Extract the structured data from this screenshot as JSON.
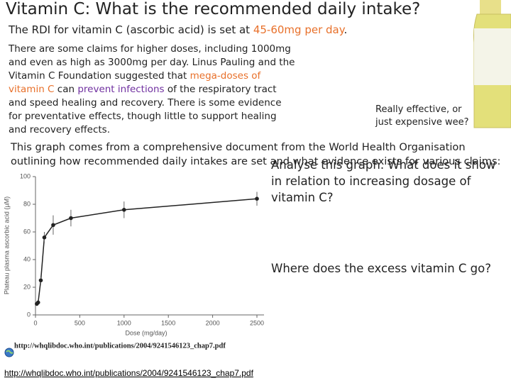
{
  "header": {
    "title": "Vitamin C: What is the recommended daily intake?"
  },
  "intro": [
    "The RDI for vitamin C (ascorbic acid) is set at ",
    "45-60mg per day",
    "."
  ],
  "claims": [
    "There are some claims for higher doses, including 1000mg and even as high as 3000mg per day. Linus Pauling and the Vitamin C Foundation suggested that ",
    "mega-doses of vitamin C",
    " can ",
    "prevent infections",
    " of the respiratory tract and speed healing and recovery. There is some evidence for preventative effects, though little to support healing and recovery effects."
  ],
  "caption": "Really effective, or just expensive wee?",
  "graph_intro": "This graph comes from a  comprehensive document from the World Health Organisation outlining how recommended daily intakes are set and what evidence exists for various claims:",
  "questions": [
    "Analyse this graph. What does it show in relation to increasing dosage of vitamin C?",
    "Where does the excess vitamin C go?"
  ],
  "chart_data": {
    "type": "line",
    "xlabel": "Dose (mg/day)",
    "ylabel": "Plateau plasma ascorbic acid (µM)",
    "x": [
      15,
      30,
      60,
      100,
      200,
      400,
      1000,
      2500
    ],
    "values": [
      8,
      9,
      25,
      56,
      65,
      70,
      76,
      84
    ],
    "errors": [
      0,
      0,
      2,
      4,
      7,
      6,
      6,
      5
    ],
    "color": "#222222",
    "xlim": [
      0,
      2500
    ],
    "xticks": [
      0,
      500,
      1000,
      1500,
      2000,
      2500
    ],
    "ylim": [
      0,
      100
    ],
    "yticks": [
      0,
      20,
      40,
      60,
      80,
      100
    ],
    "source": "http://whqlibdoc.who.int/publications/2004/9241546123_chap7.pdf"
  },
  "link": "http://whqlibdoc.who.int/publications/2004/9241546123_chap7.pdf"
}
